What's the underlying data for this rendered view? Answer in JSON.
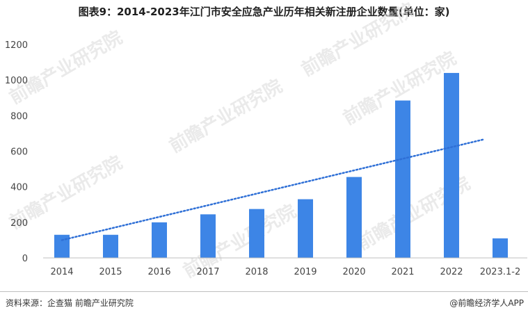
{
  "title": "图表9：2014-2023年江门市安全应急产业历年相关新注册企业数量(单位：家)",
  "source": "资料来源：企查猫 前瞻产业研究院",
  "credit": "@前瞻经济学人APP",
  "watermark": "前瞻产业研究院",
  "colors": {
    "bar": "#3d85e6",
    "trend": "#2e6fd6",
    "axis": "#bfbfbf"
  },
  "chart_data": {
    "type": "bar",
    "categories": [
      "2014",
      "2015",
      "2016",
      "2017",
      "2018",
      "2019",
      "2020",
      "2021",
      "2022",
      "2023.1-2"
    ],
    "values": [
      130,
      130,
      200,
      245,
      275,
      330,
      455,
      885,
      1040,
      110
    ],
    "ylim": [
      0,
      1200
    ],
    "yticks": [
      0,
      200,
      400,
      600,
      800,
      1000,
      1200
    ],
    "trendline": {
      "style": "dotted",
      "from_category": "2014",
      "to_category": "2022",
      "start_value": 100,
      "end_value": 665
    },
    "grid": false
  }
}
